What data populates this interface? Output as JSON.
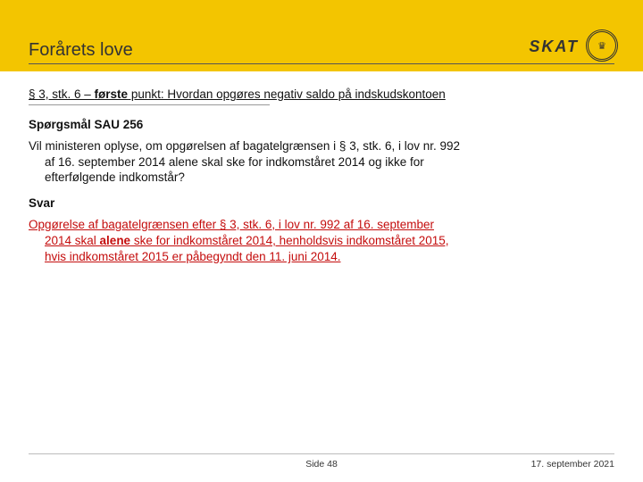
{
  "header": {
    "title": "Forårets love",
    "logo_text": "SKAT",
    "logo_glyph": "♛"
  },
  "subheading": {
    "prefix": "§ 3, stk. 6 – ",
    "bold": "første",
    "suffix": " punkt: Hvordan opgøres negativ saldo på indskudskontoen"
  },
  "question": {
    "label": "Spørgsmål SAU 256",
    "line1": "Vil ministeren oplyse, om opgørelsen af bagatelgrænsen i § 3, stk. 6, i lov nr. 992",
    "line2": "af 16. september 2014 alene skal ske for indkomståret 2014 og ikke for",
    "line3": "efterfølgende indkomstår?"
  },
  "answer": {
    "label": "Svar",
    "l1a": "Opgørelse af bagatelgrænsen efter § 3, stk. 6, i lov nr. 992 af 16. september",
    "l2a": "2014 skal ",
    "l2bold": "alene",
    "l2b": " ske for indkomståret 2014, henholdsvis indkomståret 2015,",
    "l3": "hvis indkomståret 2015 er påbegyndt den 11. juni 2014."
  },
  "footer": {
    "page": "Side 48",
    "date": "17. september 2021"
  }
}
